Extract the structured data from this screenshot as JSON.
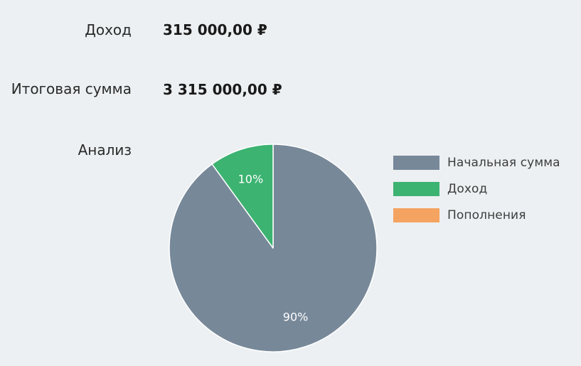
{
  "summary": {
    "income_label": "Доход",
    "income_value": "315 000,00 ₽",
    "total_label": "Итоговая сумма",
    "total_value": "3 315 000,00 ₽",
    "analysis_label": "Анализ"
  },
  "chart_data": {
    "type": "pie",
    "title": "",
    "slices": [
      {
        "name": "Начальная сумма",
        "value": 90,
        "label": "90%",
        "color": "#778899"
      },
      {
        "name": "Доход",
        "value": 10,
        "label": "10%",
        "color": "#3cb371"
      },
      {
        "name": "Пополнения",
        "value": 0,
        "label": "",
        "color": "#f4a460"
      }
    ],
    "legend_position": "right",
    "slice_border_color": "#ffffff"
  }
}
